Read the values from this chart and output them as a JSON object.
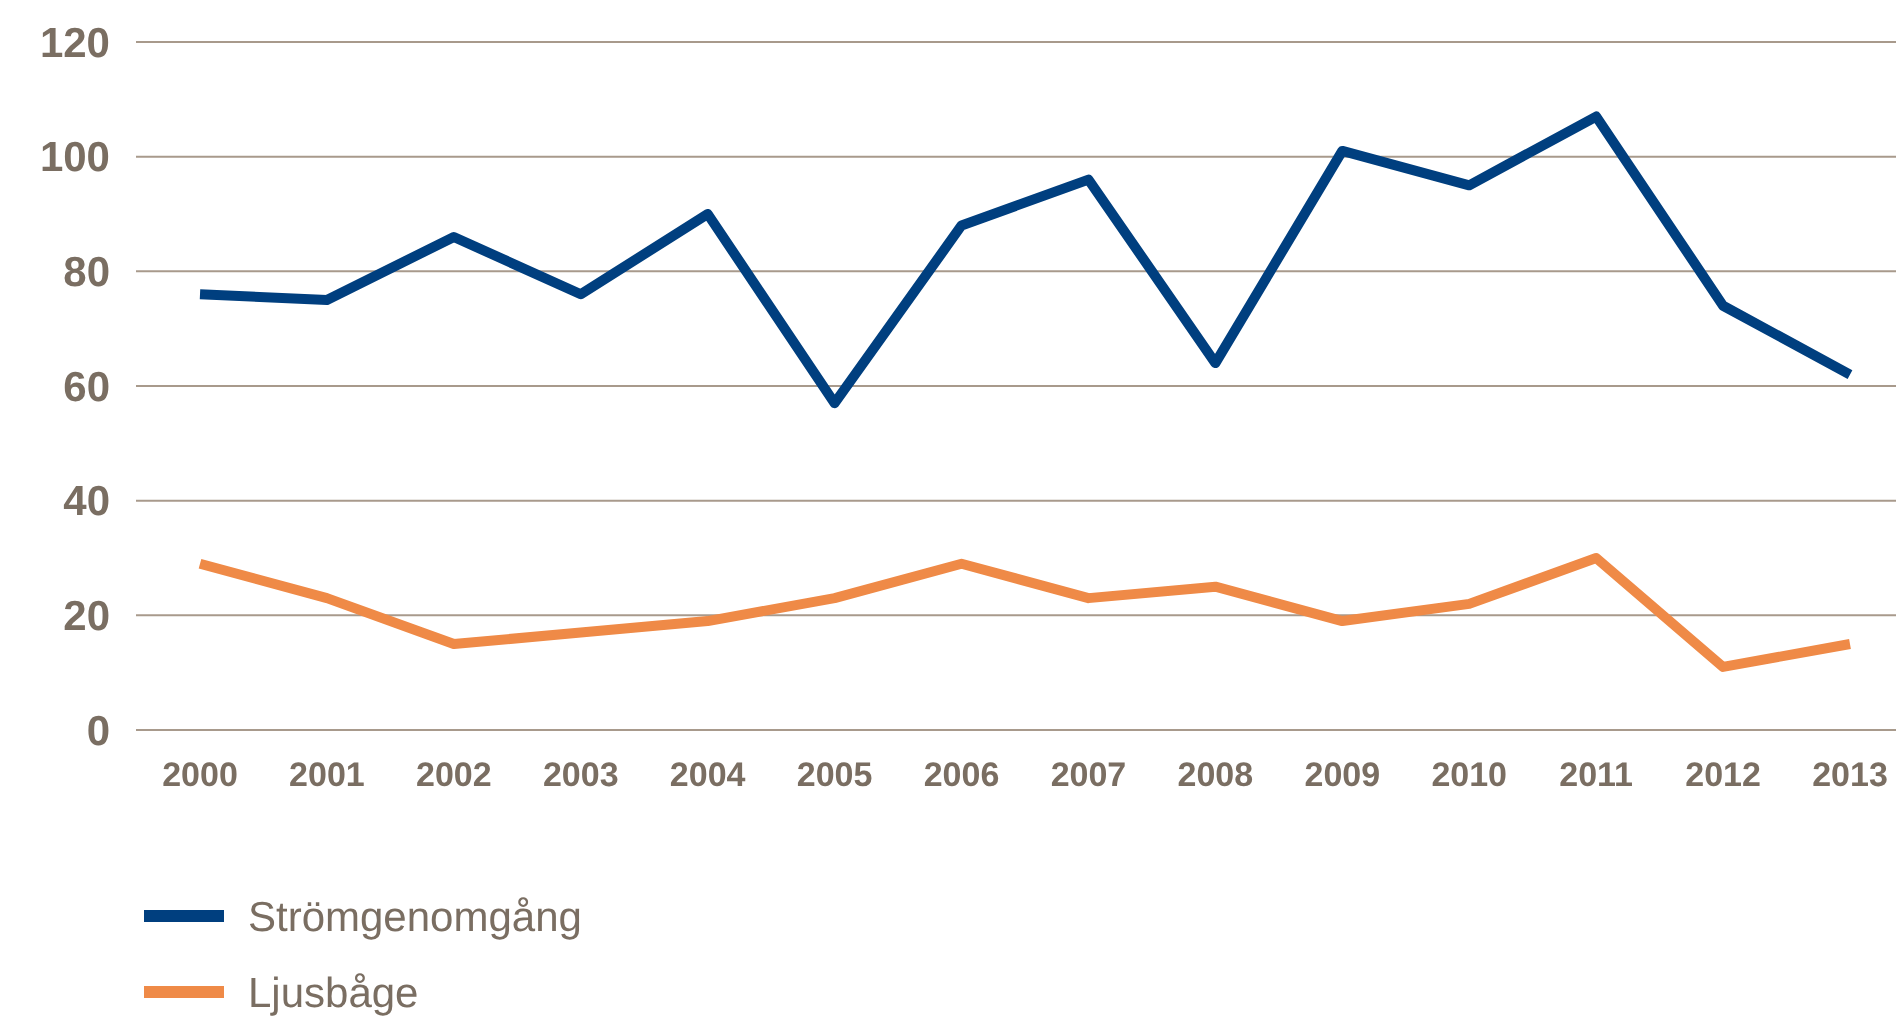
{
  "chart_data": {
    "type": "line",
    "categories": [
      "2000",
      "2001",
      "2002",
      "2003",
      "2004",
      "2005",
      "2006",
      "2007",
      "2008",
      "2009",
      "2010",
      "2011",
      "2012",
      "2013"
    ],
    "series": [
      {
        "name": "Strömgenomgång",
        "color": "#003f7f",
        "values": [
          76,
          75,
          86,
          76,
          90,
          57,
          88,
          96,
          64,
          101,
          95,
          107,
          74,
          62
        ]
      },
      {
        "name": "Ljusbåge",
        "color": "#ef8a47",
        "values": [
          29,
          23,
          15,
          17,
          19,
          23,
          29,
          23,
          25,
          19,
          22,
          30,
          11,
          15
        ]
      }
    ],
    "ylim": [
      0,
      120
    ],
    "yticks": [
      0,
      20,
      40,
      60,
      80,
      100,
      120
    ],
    "grid": "y",
    "legend": "bottom",
    "marker": "none",
    "line_style": "solid"
  }
}
